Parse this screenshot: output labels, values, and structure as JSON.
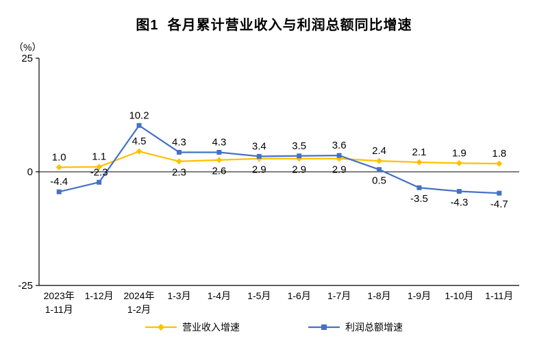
{
  "title": "图1  各月累计营业收入与利润总额同比增速",
  "chart_data": {
    "type": "line",
    "unit_label": "（%）",
    "categories": [
      "2023年\n1-11月",
      "1-12月",
      "2024年\n1-2月",
      "1-3月",
      "1-4月",
      "1-5月",
      "1-6月",
      "1-7月",
      "1-8月",
      "1-9月",
      "1-10月",
      "1-11月"
    ],
    "series": [
      {
        "name": "营业收入增速",
        "color": "#FFC000",
        "marker": "diamond",
        "values": [
          1.0,
          1.1,
          4.5,
          2.3,
          2.6,
          2.9,
          2.9,
          2.9,
          2.4,
          2.1,
          1.9,
          1.8
        ],
        "label_positions": [
          "above",
          "above",
          "above",
          "below",
          "below",
          "below",
          "below",
          "below",
          "above",
          "above",
          "above",
          "above"
        ]
      },
      {
        "name": "利润总额增速",
        "color": "#4472C4",
        "marker": "square",
        "values": [
          -4.4,
          -2.3,
          10.2,
          4.3,
          4.3,
          3.4,
          3.5,
          3.6,
          0.5,
          -3.5,
          -4.3,
          -4.7
        ],
        "label_positions": [
          "above",
          "above",
          "above",
          "above",
          "above",
          "above",
          "above",
          "above",
          "below",
          "below",
          "below",
          "below"
        ]
      }
    ],
    "ylim": [
      -25,
      25
    ],
    "yticks": [
      25,
      0,
      -25
    ],
    "legend_position": "bottom",
    "grid": false
  }
}
